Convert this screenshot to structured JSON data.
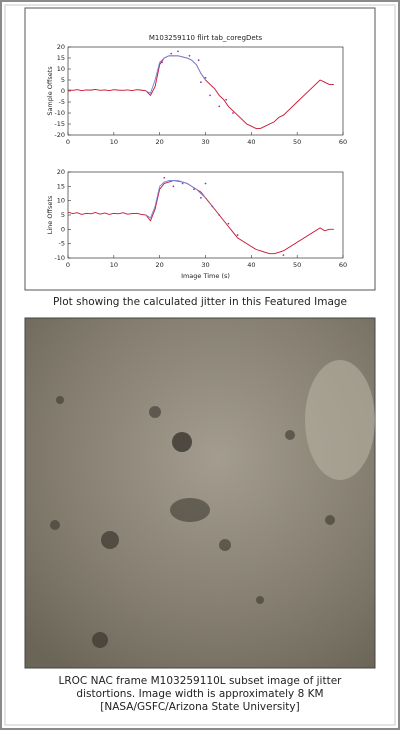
{
  "chart_data": [
    {
      "type": "line",
      "title": "M103259110 flirt tab_coregDets",
      "ylabel": "Sample Offsets",
      "xlim": [
        0,
        60
      ],
      "ylim": [
        -20,
        20
      ],
      "xticks": [
        0,
        10,
        20,
        30,
        40,
        50,
        60
      ],
      "yticks": [
        -20,
        -15,
        -10,
        -5,
        0,
        5,
        10,
        15,
        20
      ],
      "series": [
        {
          "kind": "line",
          "color": "#c8102e",
          "x": [
            0,
            1,
            2,
            3,
            4,
            5,
            6,
            7,
            8,
            9,
            10,
            11,
            12,
            13,
            14,
            15,
            16,
            17,
            18,
            19,
            20,
            21,
            22,
            23,
            24,
            25,
            26,
            27,
            28,
            29,
            30,
            31,
            32,
            33,
            34,
            35,
            36,
            37,
            38,
            39,
            40,
            41,
            42,
            43,
            44,
            45,
            46,
            47,
            48,
            49,
            50,
            51,
            52,
            53,
            54,
            55,
            56,
            57,
            58
          ],
          "values": [
            0.5,
            0.3,
            0.6,
            0.2,
            0.5,
            0.4,
            0.7,
            0.3,
            0.5,
            0.2,
            0.6,
            0.4,
            0.3,
            0.5,
            0.2,
            0.6,
            0.4,
            0.1,
            -2,
            2,
            12,
            15,
            16,
            16,
            16,
            15.5,
            15,
            14,
            12,
            8,
            5,
            3,
            1,
            -2,
            -4,
            -7,
            -9,
            -11,
            -13,
            -15,
            -16,
            -17,
            -17,
            -16,
            -15,
            -14,
            -12,
            -11,
            -9,
            -7,
            -5,
            -3,
            -1,
            1,
            3,
            5,
            4,
            3,
            3
          ]
        },
        {
          "kind": "line",
          "color": "#7084d8",
          "x": [
            17,
            18,
            19,
            20,
            21,
            22,
            23,
            24,
            25,
            26,
            27,
            28,
            29,
            30
          ],
          "values": [
            0,
            -1,
            5,
            13,
            15,
            16,
            16,
            16,
            15.5,
            15,
            14,
            12,
            8,
            5
          ]
        },
        {
          "kind": "scatter",
          "color": "#8a3fb0",
          "x": [
            20.5,
            22.5,
            24,
            26.5,
            28.5,
            29,
            30,
            31,
            33,
            34.5,
            36
          ],
          "values": [
            13,
            17,
            18,
            16,
            14,
            4,
            6,
            -2,
            -7,
            -4,
            -10
          ]
        }
      ]
    },
    {
      "type": "line",
      "ylabel": "Line Offsets",
      "xlabel": "Image Time (s)",
      "xlim": [
        0,
        60
      ],
      "ylim": [
        -10,
        20
      ],
      "xticks": [
        0,
        10,
        20,
        30,
        40,
        50,
        60
      ],
      "yticks": [
        -10,
        -5,
        0,
        5,
        10,
        15,
        20
      ],
      "series": [
        {
          "kind": "line",
          "color": "#c8102e",
          "x": [
            0,
            1,
            2,
            3,
            4,
            5,
            6,
            7,
            8,
            9,
            10,
            11,
            12,
            13,
            14,
            15,
            16,
            17,
            18,
            19,
            20,
            21,
            22,
            23,
            24,
            25,
            26,
            27,
            28,
            29,
            30,
            31,
            32,
            33,
            34,
            35,
            36,
            37,
            38,
            39,
            40,
            41,
            42,
            43,
            44,
            45,
            46,
            47,
            48,
            49,
            50,
            51,
            52,
            53,
            54,
            55,
            56,
            57,
            58
          ],
          "values": [
            6,
            5.5,
            5.8,
            5.2,
            5.6,
            5.4,
            5.9,
            5.3,
            5.7,
            5.2,
            5.6,
            5.4,
            5.8,
            5.3,
            5.5,
            5.6,
            5.2,
            5,
            3,
            7,
            14,
            16,
            16.5,
            17,
            16.8,
            16.5,
            16,
            15,
            14,
            13,
            11,
            9,
            7,
            5,
            3,
            1,
            -1,
            -3,
            -4,
            -5,
            -6,
            -7,
            -7.5,
            -8,
            -8.5,
            -8.5,
            -8,
            -7.5,
            -6.5,
            -5.5,
            -4.5,
            -3.5,
            -2.5,
            -1.5,
            -0.5,
            0.5,
            -0.5,
            0,
            0
          ]
        },
        {
          "kind": "line",
          "color": "#7084d8",
          "x": [
            17,
            18,
            19,
            20,
            21,
            22,
            23,
            24,
            25,
            26,
            27,
            28,
            29,
            30
          ],
          "values": [
            5,
            4,
            8,
            15,
            16.5,
            17,
            17,
            17,
            16.5,
            16,
            15,
            14,
            12.5,
            11
          ]
        },
        {
          "kind": "scatter",
          "color": "#8a3fb0",
          "x": [
            21,
            23,
            25,
            27.5,
            29,
            30,
            31.5,
            33,
            35,
            37,
            47
          ],
          "values": [
            18,
            15,
            16,
            14,
            11,
            16,
            8,
            5,
            2,
            -2,
            -9
          ]
        }
      ]
    }
  ],
  "plot_caption": "Plot showing the calculated jitter in this Featured Image",
  "image_caption": [
    "LROC NAC frame M103259110L subset image of jitter",
    "distortions. Image width is approximately 8 KM",
    "[NASA/GSFC/Arizona State University]"
  ]
}
